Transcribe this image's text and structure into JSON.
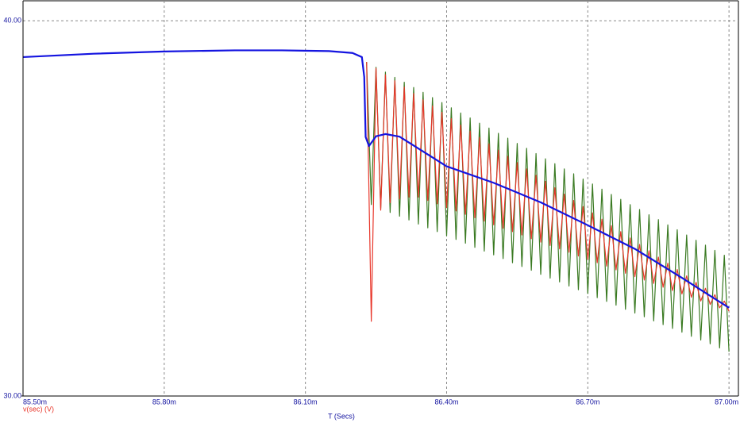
{
  "chart_data": {
    "type": "line",
    "xlabel": "T (Secs)",
    "xlim": [
      85.5,
      87.02
    ],
    "ylim": [
      30,
      40.53
    ],
    "xticks": [
      {
        "value": 85.5,
        "label": "85.50m"
      },
      {
        "value": 85.8,
        "label": "85.80m"
      },
      {
        "value": 86.1,
        "label": "86.10m"
      },
      {
        "value": 86.4,
        "label": "86.40m"
      },
      {
        "value": 86.7,
        "label": "86.70m"
      },
      {
        "value": 87.0,
        "label": "87.00m"
      }
    ],
    "yticks": [
      {
        "value": 30,
        "label": "30.00"
      },
      {
        "value": 40,
        "label": "40.00"
      }
    ],
    "grid": true,
    "x": [
      86.23,
      86.24,
      86.25,
      86.26,
      86.27,
      86.28,
      86.29,
      86.3,
      86.31,
      86.32,
      86.33,
      86.34,
      86.35,
      86.36,
      86.37,
      86.38,
      86.39,
      86.4,
      86.41,
      86.42,
      86.43,
      86.44,
      86.45,
      86.46,
      86.47,
      86.48,
      86.49,
      86.5,
      86.51,
      86.52,
      86.53,
      86.54,
      86.55,
      86.56,
      86.57,
      86.58,
      86.59,
      86.6,
      86.61,
      86.62,
      86.63,
      86.64,
      86.65,
      86.66,
      86.67,
      86.68,
      86.69,
      86.7,
      86.71,
      86.72,
      86.73,
      86.74,
      86.75,
      86.76,
      86.77,
      86.78,
      86.79,
      86.8,
      86.81,
      86.82,
      86.83,
      86.84,
      86.85,
      86.86,
      86.87,
      86.88,
      86.89,
      86.9,
      86.91,
      86.92,
      86.93,
      86.94,
      86.95,
      86.96,
      86.97,
      86.98,
      86.99,
      87.0
    ],
    "series": [
      {
        "color": "#3a7a22",
        "values": [
          38.9,
          35.1,
          38.76,
          35.0,
          38.63,
          34.89,
          38.49,
          34.79,
          38.36,
          34.69,
          38.22,
          34.58,
          38.09,
          34.48,
          37.95,
          34.38,
          37.82,
          34.27,
          37.68,
          34.17,
          37.54,
          34.07,
          37.41,
          33.96,
          37.27,
          33.86,
          37.14,
          33.76,
          37.0,
          33.66,
          36.87,
          33.55,
          36.73,
          33.45,
          36.6,
          33.35,
          36.46,
          33.24,
          36.32,
          33.14,
          36.19,
          33.04,
          36.05,
          32.93,
          35.92,
          32.83,
          35.78,
          32.73,
          35.65,
          32.62,
          35.51,
          32.52,
          35.37,
          32.42,
          35.24,
          32.31,
          35.1,
          32.21,
          34.97,
          32.11,
          34.83,
          32.0,
          34.7,
          31.9,
          34.56,
          31.8,
          34.43,
          31.7,
          34.29,
          31.59,
          34.15,
          31.49,
          34.02,
          31.39,
          33.88,
          31.28,
          33.75,
          31.18
        ]
      },
      {
        "name": "v(sec) (V)",
        "color": "#e8362a",
        "values": [
          38.9,
          31.99,
          38.73,
          34.95,
          38.56,
          35.15,
          38.4,
          35.25,
          38.23,
          35.3,
          38.06,
          35.3,
          37.89,
          35.21,
          37.73,
          35.12,
          37.56,
          35.02,
          37.39,
          34.93,
          37.22,
          34.84,
          37.06,
          34.75,
          36.89,
          34.66,
          36.72,
          34.56,
          36.55,
          34.47,
          36.39,
          34.38,
          36.22,
          34.29,
          36.05,
          34.19,
          35.88,
          34.1,
          35.72,
          34.01,
          35.55,
          33.92,
          35.38,
          33.83,
          35.21,
          33.73,
          35.05,
          33.64,
          34.88,
          33.55,
          34.71,
          33.46,
          34.54,
          33.36,
          34.38,
          33.27,
          34.21,
          33.18,
          34.04,
          33.09,
          33.87,
          33.0,
          33.7,
          32.9,
          33.54,
          32.81,
          33.37,
          32.72,
          33.2,
          32.63,
          33.03,
          32.53,
          32.87,
          32.44,
          32.7,
          32.35,
          32.53,
          32.26
        ]
      },
      {
        "color": "#1414e0",
        "x": [
          85.5,
          85.65,
          85.8,
          85.95,
          86.05,
          86.15,
          86.2,
          86.22,
          86.225,
          86.228,
          86.235,
          86.25,
          86.27,
          86.3,
          86.4,
          86.5,
          86.6,
          86.7,
          86.8,
          86.9,
          87.0
        ],
        "values": [
          39.03,
          39.12,
          39.18,
          39.21,
          39.21,
          39.19,
          39.14,
          39.03,
          38.5,
          36.9,
          36.66,
          36.92,
          36.98,
          36.91,
          36.12,
          35.68,
          35.16,
          34.55,
          33.92,
          33.15,
          32.35
        ]
      }
    ]
  }
}
